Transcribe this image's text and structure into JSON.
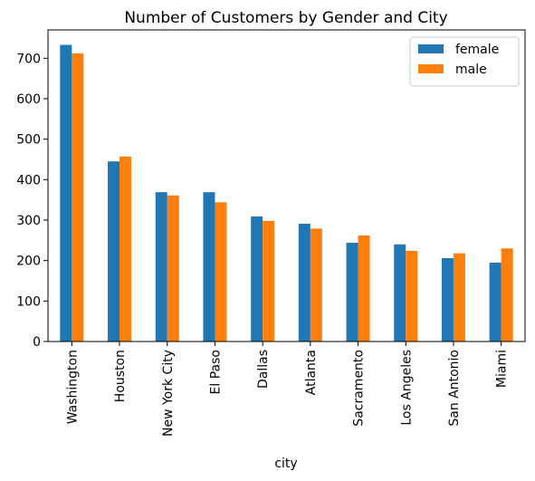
{
  "chart_data": {
    "type": "bar",
    "title": "Number of Customers by Gender and City",
    "xlabel": "city",
    "ylabel": "",
    "ylim": [
      0,
      770
    ],
    "yticks": [
      0,
      100,
      200,
      300,
      400,
      500,
      600,
      700
    ],
    "categories": [
      "Washington",
      "Houston",
      "New York City",
      "El Paso",
      "Dallas",
      "Atlanta",
      "Sacramento",
      "Los Angeles",
      "San Antonio",
      "Miami"
    ],
    "series": [
      {
        "name": "female",
        "color": "#1f77b4",
        "values": [
          733,
          445,
          369,
          369,
          309,
          291,
          244,
          240,
          206,
          195
        ]
      },
      {
        "name": "male",
        "color": "#ff7f0e",
        "values": [
          712,
          457,
          361,
          344,
          298,
          279,
          262,
          224,
          218,
          230
        ]
      }
    ],
    "legend_position": "top-right",
    "grid": false
  }
}
